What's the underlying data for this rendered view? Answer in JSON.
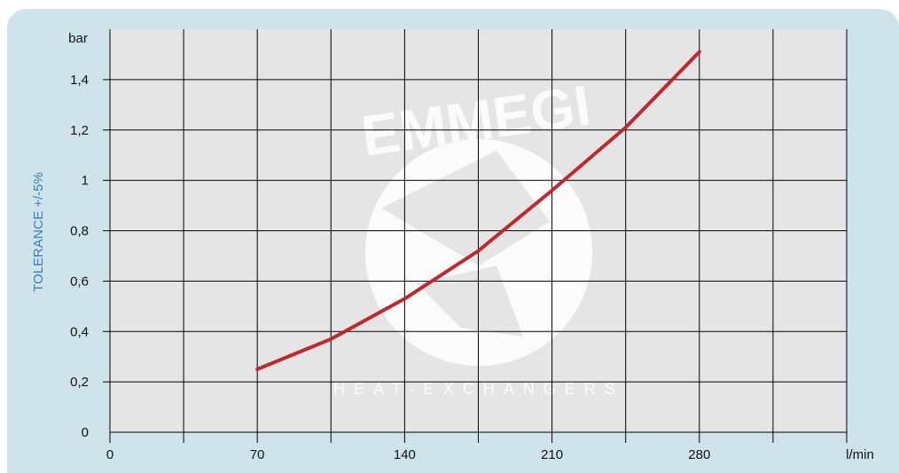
{
  "chart_data": {
    "type": "line",
    "ylabel": "TOLERANCE +/-5%",
    "y_unit": "bar",
    "x_unit": "l/min",
    "x_ticks": [
      "0",
      "70",
      "140",
      "210",
      "280"
    ],
    "y_ticks": [
      "0",
      "0,2",
      "0,4",
      "0,6",
      "0,8",
      "1",
      "1,2",
      "1,4"
    ],
    "xlim": [
      0,
      350
    ],
    "ylim": [
      0,
      1.6
    ],
    "grid": true,
    "line_color": "#c1272d",
    "plot_bg": "#e5e5e5",
    "panel_bg": "#cfe3ea",
    "series": [
      {
        "x": [
          70,
          105,
          140,
          175,
          210,
          245,
          280
        ],
        "y": [
          0.25,
          0.37,
          0.53,
          0.72,
          0.96,
          1.21,
          1.51
        ]
      }
    ]
  },
  "watermark": {
    "brand": "EMMEGI",
    "subtitle": "HEAT-EXCHANGERS"
  }
}
